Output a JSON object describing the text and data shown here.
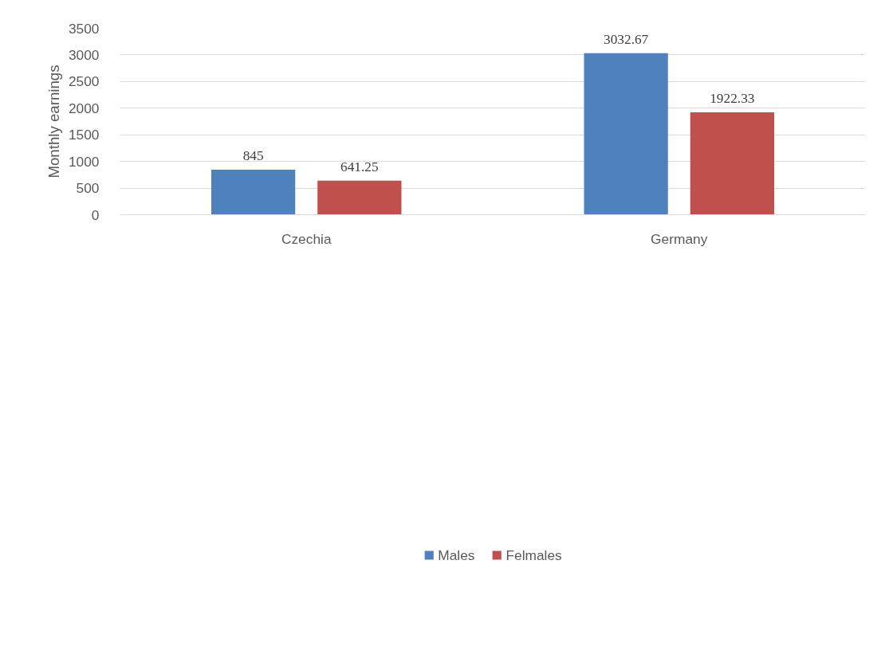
{
  "chart_data": {
    "type": "bar",
    "ylabel": "Monthly earnings",
    "categories": [
      "Czechia",
      "Germany"
    ],
    "series": [
      {
        "name": "Males",
        "color": "#4f81bd",
        "values": [
          845,
          3032.67
        ]
      },
      {
        "name": "Felmales",
        "color": "#c0504d",
        "values": [
          641.25,
          1922.33
        ]
      }
    ],
    "ylim": [
      0,
      3500
    ],
    "yticks": [
      0,
      500,
      1000,
      1500,
      2000,
      2500,
      3000,
      3500
    ],
    "grid": "y",
    "legend": "bottom",
    "data_labels": true
  }
}
